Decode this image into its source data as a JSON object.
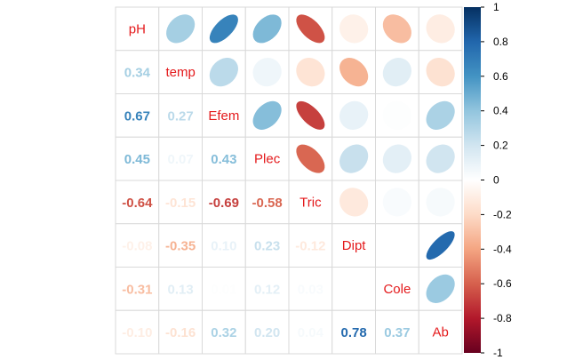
{
  "chart_data": {
    "type": "heatmap",
    "style": "mixed: ellipses in upper triangle, coefficients in lower triangle",
    "variables": [
      "pH",
      "temp",
      "Efem",
      "Plec",
      "Tric",
      "Dipt",
      "Cole",
      "Ab"
    ],
    "matrix": [
      [
        1.0,
        0.34,
        0.67,
        0.45,
        -0.64,
        -0.08,
        -0.31,
        -0.1
      ],
      [
        0.34,
        1.0,
        0.27,
        0.07,
        -0.15,
        -0.35,
        0.13,
        -0.16
      ],
      [
        0.67,
        0.27,
        1.0,
        0.43,
        -0.69,
        0.1,
        0.01,
        0.32
      ],
      [
        0.45,
        0.07,
        0.43,
        1.0,
        -0.58,
        0.23,
        0.12,
        0.2
      ],
      [
        -0.64,
        -0.15,
        -0.69,
        -0.58,
        1.0,
        -0.12,
        0.03,
        0.04
      ],
      [
        -0.08,
        -0.35,
        0.1,
        0.23,
        -0.12,
        1.0,
        0.0,
        0.78
      ],
      [
        -0.31,
        0.13,
        0.01,
        0.12,
        0.03,
        0.0,
        1.0,
        0.37
      ],
      [
        -0.1,
        -0.16,
        0.32,
        0.2,
        0.04,
        0.78,
        0.37,
        1.0
      ]
    ],
    "lower_labels": [
      [
        "0.34"
      ],
      [
        "0.67",
        "0.27"
      ],
      [
        "0.45",
        "0.07",
        "0.43"
      ],
      [
        "-0.64",
        "-0.15",
        "-0.69",
        "-0.58"
      ],
      [
        "-0.08",
        "-0.35",
        "0.10",
        "0.23",
        "-0.12"
      ],
      [
        "-0.31",
        "0.13",
        "0.01",
        "0.12",
        "0.03",
        ""
      ],
      [
        "-0.10",
        "-0.16",
        "0.32",
        "0.20",
        "0.04",
        "0.78",
        "0.37"
      ]
    ],
    "colorbar": {
      "range": [
        -1,
        1
      ],
      "ticks": [
        "1",
        "0.8",
        "0.6",
        "0.4",
        "0.2",
        "0",
        "-0.2",
        "-0.4",
        "-0.6",
        "-0.8",
        "-1"
      ],
      "placement": "right"
    },
    "palette": [
      "#67001f",
      "#b2182b",
      "#d6604d",
      "#f4a582",
      "#fddbc7",
      "#ffffff",
      "#d1e5f0",
      "#92c5de",
      "#4393c3",
      "#2166ac",
      "#053061"
    ],
    "diagonal_label_color": "#e41a1c"
  }
}
